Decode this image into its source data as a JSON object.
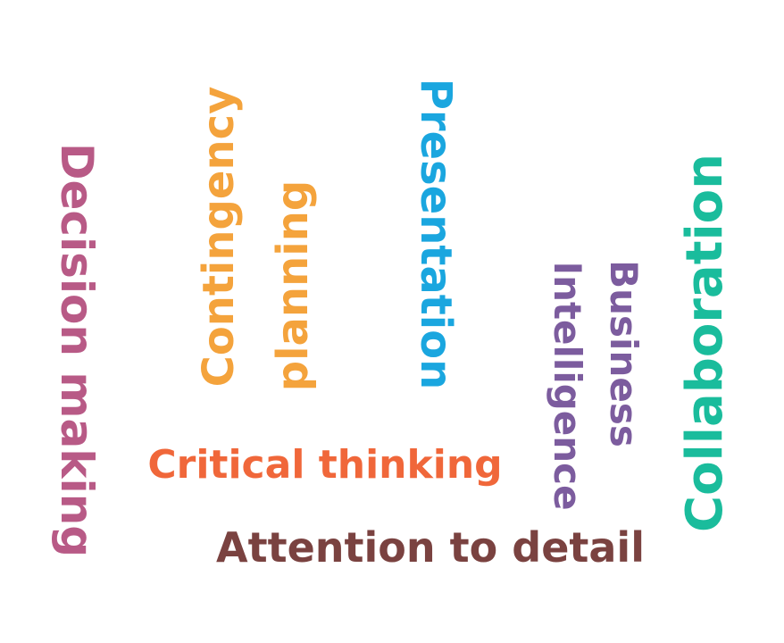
{
  "words": {
    "decision_making": {
      "text": "Decision making",
      "color": "#B85A86"
    },
    "contingency": {
      "text": "Contingency",
      "color": "#F4A33C"
    },
    "planning": {
      "text": "planning",
      "color": "#F4A33C"
    },
    "presentation": {
      "text": "Presentation",
      "color": "#1AA6DF"
    },
    "intelligence": {
      "text": "Intelligence",
      "color": "#7C5C9E"
    },
    "business": {
      "text": "Business",
      "color": "#7C5C9E"
    },
    "collaboration": {
      "text": "Collaboration",
      "color": "#1ABC9C"
    },
    "critical_thinking": {
      "text": "Critical thinking",
      "color": "#F0673A"
    },
    "attention_to_detail": {
      "text": "Attention to detail",
      "color": "#7A4240"
    }
  }
}
